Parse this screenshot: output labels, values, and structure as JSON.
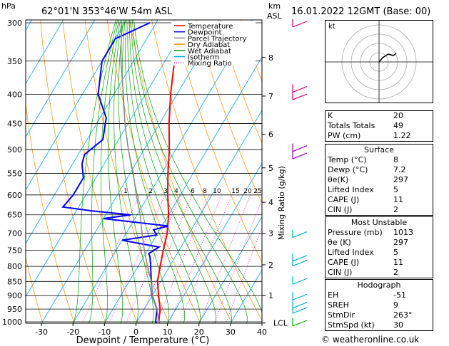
{
  "header": {
    "location": "62°01'N  353°46'W  54m  ASL",
    "datetime": "16.01.2022  12GMT  (Base: 00)",
    "hpa_label": "hPa",
    "km_label": "km",
    "asl_label": "ASL"
  },
  "legend": {
    "items": [
      {
        "label": "Temperature",
        "color": "#ff0000"
      },
      {
        "label": "Dewpoint",
        "color": "#0000ff"
      },
      {
        "label": "Parcel Trajectory",
        "color": "#888888"
      },
      {
        "label": "Dry Adiabat",
        "color": "#ff8c00"
      },
      {
        "label": "Wet Adiabat",
        "color": "#00a000"
      },
      {
        "label": "Isotherm",
        "color": "#00aaff"
      },
      {
        "label": "Mixing Ratio",
        "color": "#ff00ff"
      }
    ]
  },
  "chart_data": {
    "type": "line",
    "title": "",
    "xlabel": "Dewpoint / Temperature (°C)",
    "ylabel": "Mixing Ratio (g/kg)",
    "xlim": [
      -35,
      40
    ],
    "pressure_levels": [
      300,
      350,
      400,
      450,
      500,
      550,
      600,
      650,
      700,
      750,
      800,
      850,
      900,
      950,
      1000
    ],
    "x_ticks": [
      -30,
      -20,
      -10,
      0,
      10,
      20,
      30,
      40
    ],
    "km_ticks": [
      {
        "km": "8",
        "p": 345
      },
      {
        "km": "7",
        "p": 403
      },
      {
        "km": "6",
        "p": 470
      },
      {
        "km": "5",
        "p": 538
      },
      {
        "km": "4",
        "p": 618
      },
      {
        "km": "3",
        "p": 700
      },
      {
        "km": "2",
        "p": 795
      },
      {
        "km": "1",
        "p": 900
      },
      {
        "km": "LCL",
        "p": 1005
      }
    ],
    "mixing_ratio_labels": [
      "1",
      "2",
      "3",
      "4",
      "6",
      "8",
      "10",
      "15",
      "20",
      "25"
    ],
    "series": [
      {
        "name": "Temperature",
        "color": "#ff0000",
        "points": [
          [
            8,
            1013
          ],
          [
            7,
            1000
          ],
          [
            5,
            950
          ],
          [
            2,
            900
          ],
          [
            -1,
            850
          ],
          [
            -3,
            800
          ],
          [
            -5,
            750
          ],
          [
            -7,
            700
          ],
          [
            -10,
            650
          ],
          [
            -14,
            600
          ],
          [
            -18,
            550
          ],
          [
            -22,
            500
          ],
          [
            -27,
            450
          ],
          [
            -32,
            400
          ],
          [
            -37,
            350
          ],
          [
            -42,
            300
          ]
        ]
      },
      {
        "name": "Dewpoint",
        "color": "#0000ff",
        "points": [
          [
            7.2,
            1013
          ],
          [
            6,
            1000
          ],
          [
            4,
            950
          ],
          [
            0,
            900
          ],
          [
            -3,
            850
          ],
          [
            -6,
            800
          ],
          [
            -8,
            770
          ],
          [
            -9,
            760
          ],
          [
            -7,
            740
          ],
          [
            -20,
            720
          ],
          [
            -10,
            705
          ],
          [
            -12,
            690
          ],
          [
            -8,
            680
          ],
          [
            -30,
            660
          ],
          [
            -22,
            650
          ],
          [
            -35,
            640
          ],
          [
            -45,
            630
          ],
          [
            -44,
            600
          ],
          [
            -44,
            560
          ],
          [
            -47,
            530
          ],
          [
            -48,
            510
          ],
          [
            -45,
            480
          ],
          [
            -48,
            440
          ],
          [
            -55,
            400
          ],
          [
            -60,
            350
          ],
          [
            -60,
            320
          ],
          [
            -52,
            300
          ]
        ]
      },
      {
        "name": "Parcel Trajectory",
        "color": "#888888",
        "points": [
          [
            8,
            1013
          ],
          [
            7,
            1000
          ],
          [
            4,
            950
          ],
          [
            0,
            900
          ],
          [
            -3,
            850
          ],
          [
            -7,
            800
          ],
          [
            -11,
            750
          ],
          [
            -15,
            700
          ],
          [
            -19,
            650
          ],
          [
            -24,
            600
          ],
          [
            -29,
            550
          ],
          [
            -35,
            500
          ],
          [
            -41,
            450
          ],
          [
            -47,
            400
          ],
          [
            -54,
            350
          ],
          [
            -61,
            300
          ]
        ]
      }
    ]
  },
  "hodograph": {
    "label": "kt",
    "rings": [
      10,
      20,
      30,
      40
    ]
  },
  "indices": {
    "rows": [
      {
        "k": "K",
        "v": "20"
      },
      {
        "k": "Totals Totals",
        "v": "49"
      },
      {
        "k": "PW (cm)",
        "v": "1.22"
      }
    ]
  },
  "surface": {
    "title": "Surface",
    "rows": [
      {
        "k": "Temp (°C)",
        "v": "8"
      },
      {
        "k": "Dewp (°C)",
        "v": "7.2"
      },
      {
        "k": "θe(K)",
        "v": "297"
      },
      {
        "k": "Lifted Index",
        "v": "5"
      },
      {
        "k": "CAPE (J)",
        "v": "11"
      },
      {
        "k": "CIN (J)",
        "v": "2"
      }
    ]
  },
  "most_unstable": {
    "title": "Most Unstable",
    "rows": [
      {
        "k": "Pressure (mb)",
        "v": "1013"
      },
      {
        "k": "θe (K)",
        "v": "297"
      },
      {
        "k": "Lifted Index",
        "v": "5"
      },
      {
        "k": "CAPE (J)",
        "v": "11"
      },
      {
        "k": "CIN (J)",
        "v": "2"
      }
    ]
  },
  "hodograph_stats": {
    "title": "Hodograph",
    "rows": [
      {
        "k": "EH",
        "v": "-51"
      },
      {
        "k": "SREH",
        "v": "9"
      },
      {
        "k": "StmDir",
        "v": "263°"
      },
      {
        "k": "StmSpd (kt)",
        "v": "30"
      }
    ]
  },
  "credit": "© weatheronline.co.uk"
}
